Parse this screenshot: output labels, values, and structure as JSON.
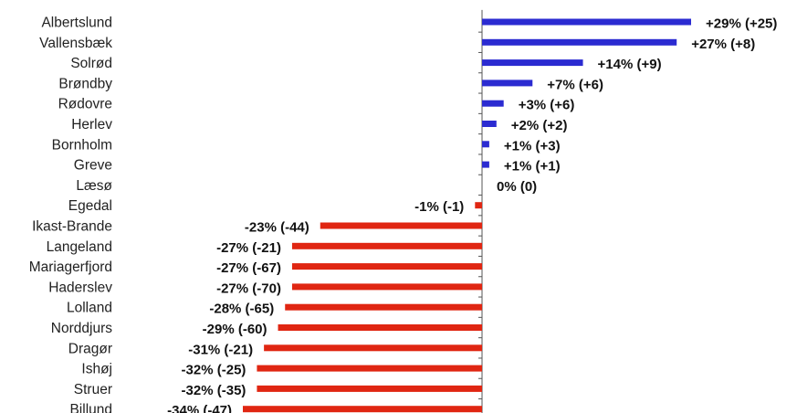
{
  "chart_data": {
    "type": "bar",
    "orientation": "horizontal",
    "title": "",
    "xlabel": "",
    "ylabel": "",
    "categories": [
      "Albertslund",
      "Vallensbæk",
      "Solrød",
      "Brøndby",
      "Rødovre",
      "Herlev",
      "Bornholm",
      "Greve",
      "Læsø",
      "Egedal",
      "Ikast-Brande",
      "Langeland",
      "Mariagerfjord",
      "Haderslev",
      "Lolland",
      "Norddjurs",
      "Dragør",
      "Ishøj",
      "Struer",
      "Billund"
    ],
    "values": [
      29,
      27,
      14,
      7,
      3,
      2,
      1,
      1,
      0,
      -1,
      -23,
      -27,
      -27,
      -27,
      -28,
      -29,
      -31,
      -32,
      -32,
      -34
    ],
    "labels": [
      "+29% (+25)",
      "+27% (+8)",
      "+14% (+9)",
      "+7% (+6)",
      "+3% (+6)",
      "+2% (+2)",
      "+1% (+3)",
      "+1% (+1)",
      "0% (0)",
      "-1% (-1)",
      "-23% (-44)",
      "-27% (-21)",
      "-27% (-67)",
      "-27% (-70)",
      "-28% (-65)",
      "-29% (-60)",
      "-31% (-21)",
      "-32% (-25)",
      "-32% (-35)",
      "-34% (-47)"
    ],
    "xlim": [
      -34,
      29
    ],
    "grid": false,
    "colors": {
      "positive": "#2b2bd1",
      "negative": "#e02612",
      "axis": "#555555"
    }
  }
}
